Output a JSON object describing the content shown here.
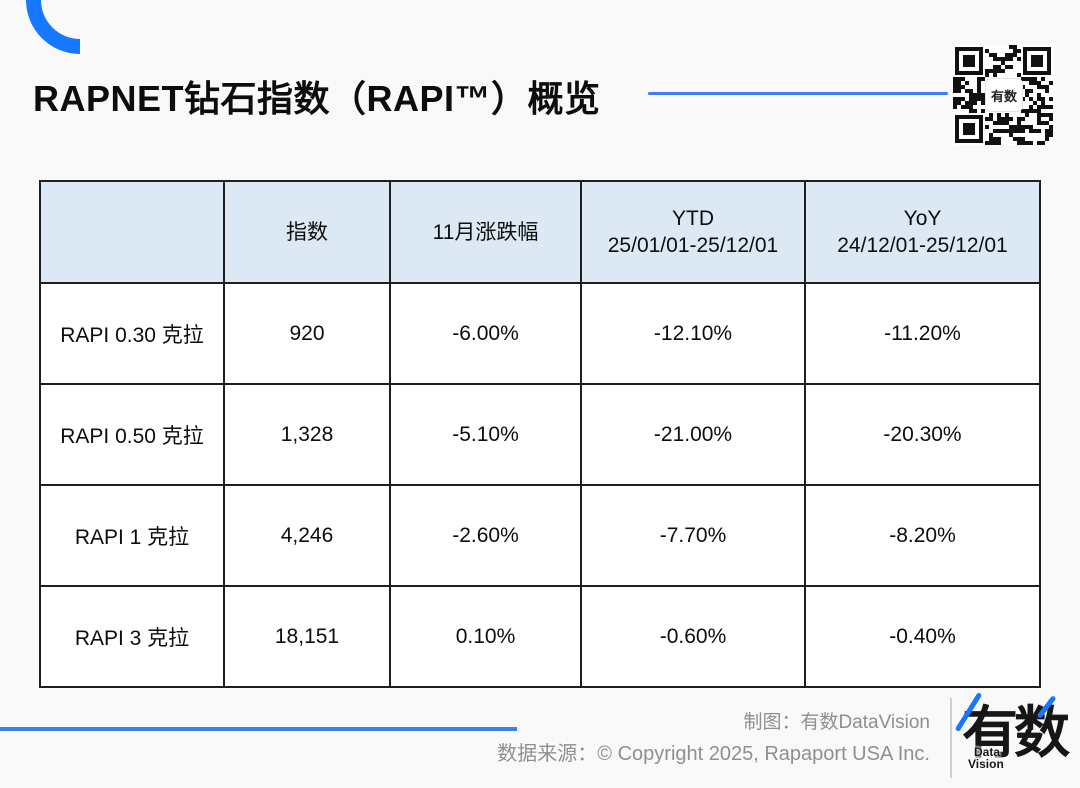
{
  "page": {
    "title": "RAPNET钻石指数（RAPI™）概览"
  },
  "colors": {
    "accent_blue": "#1677ff",
    "rule_blue": "#3d7ff0",
    "header_fill": "#dce9f5",
    "table_border": "#1f1f1f",
    "footer_gray": "#8f8f8f",
    "page_bg": "#f9f9f9"
  },
  "header_lines": {
    "c0": {
      "l1": "",
      "l2": ""
    },
    "c1": {
      "l1": "指数",
      "l2": ""
    },
    "c2": {
      "l1": "11月涨跌幅",
      "l2": ""
    },
    "c3": {
      "l1": "YTD",
      "l2": "25/01/01-25/12/01"
    },
    "c4": {
      "l1": "YoY",
      "l2": "24/12/01-25/12/01"
    }
  },
  "chart_data": {
    "type": "table",
    "title": "RAPNET钻石指数（RAPI™）概览",
    "columns": [
      "",
      "指数",
      "11月涨跌幅",
      "YTD 25/01/01-25/12/01",
      "YoY 24/12/01-25/12/01"
    ],
    "rows": [
      [
        "RAPI 0.30 克拉",
        "920",
        "-6.00%",
        "-12.10%",
        "-11.20%"
      ],
      [
        "RAPI 0.50 克拉",
        "1,328",
        "-5.10%",
        "-21.00%",
        "-20.30%"
      ],
      [
        "RAPI 1 克拉",
        "4,246",
        "-2.60%",
        "-7.70%",
        "-8.20%"
      ],
      [
        "RAPI 3 克拉",
        "18,151",
        "0.10%",
        "-0.60%",
        "-0.40%"
      ]
    ]
  },
  "qr": {
    "center_label": "有数"
  },
  "footer": {
    "credit": "制图：有数DataVision",
    "source": "数据来源：© Copyright 2025, Rapaport USA Inc.",
    "logo_text": "有数",
    "logo_sub1": "Data",
    "logo_sub2": "Vision"
  }
}
